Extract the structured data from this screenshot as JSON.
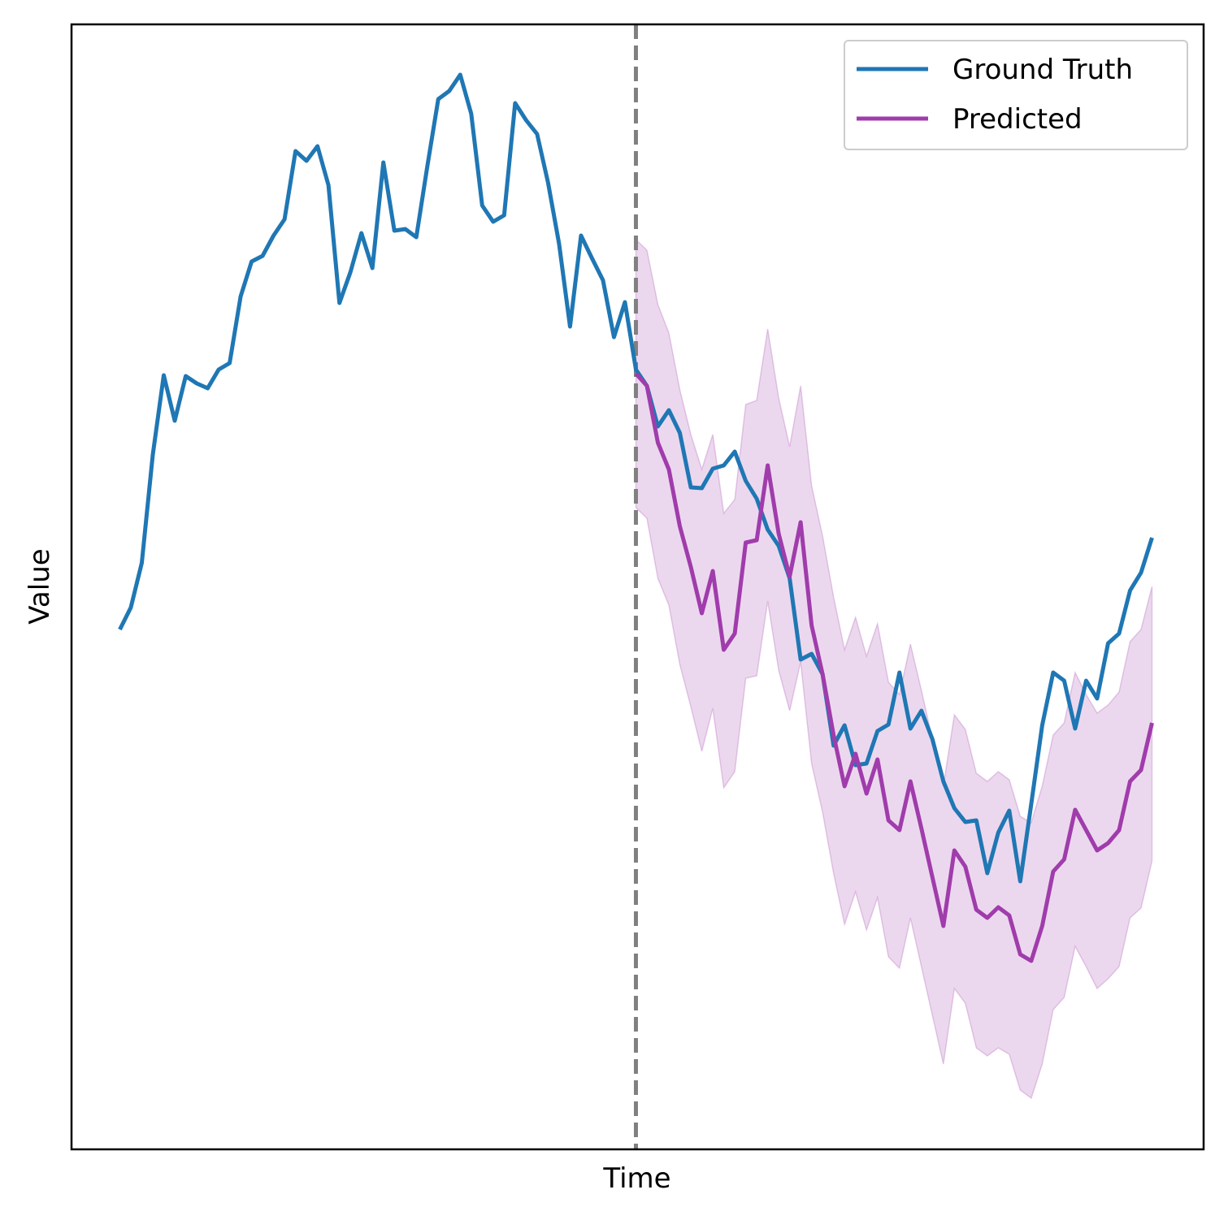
{
  "chart_data": {
    "type": "line",
    "x_label": "Time",
    "y_label": "Value",
    "x": [
      0,
      1,
      2,
      3,
      4,
      5,
      6,
      7,
      8,
      9,
      10,
      11,
      12,
      13,
      14,
      15,
      16,
      17,
      18,
      19,
      20,
      21,
      22,
      23,
      24,
      25,
      26,
      27,
      28,
      29,
      30,
      31,
      32,
      33,
      34,
      35,
      36,
      37,
      38,
      39,
      40,
      41,
      42,
      43,
      44,
      45,
      46,
      47,
      48,
      49,
      50,
      51,
      52,
      53,
      54,
      55,
      56,
      57,
      58,
      59,
      60,
      61,
      62,
      63,
      64,
      65,
      66,
      67,
      68,
      69,
      70,
      71,
      72,
      73,
      74,
      75,
      76,
      77,
      78,
      79,
      80,
      81,
      82,
      83,
      84,
      85,
      86,
      87,
      88,
      89,
      90,
      91,
      92,
      93,
      94
    ],
    "xlim": [
      -4.4,
      98.7
    ],
    "ylim": [
      0,
      1385
    ],
    "legend": "upper right",
    "series": [
      {
        "name": "Ground Truth",
        "color": "#1f77b4",
        "values": [
          640,
          667,
          722,
          855,
          953,
          897,
          952,
          943,
          937,
          960,
          968,
          1050,
          1093,
          1100,
          1125,
          1145,
          1229,
          1217,
          1235,
          1187,
          1042,
          1080,
          1128,
          1085,
          1215,
          1131,
          1133,
          1123,
          1210,
          1293,
          1303,
          1323,
          1275,
          1162,
          1142,
          1150,
          1288,
          1267,
          1250,
          1190,
          1115,
          1013,
          1125,
          1097,
          1070,
          1000,
          1043,
          960,
          940,
          890,
          910,
          882,
          815,
          814,
          838,
          842,
          859,
          823,
          801,
          763,
          743,
          703,
          603,
          610,
          585,
          497,
          522,
          473,
          475,
          515,
          523,
          587,
          518,
          540,
          505,
          453,
          420,
          403,
          405,
          340,
          390,
          417,
          330,
          425,
          522,
          587,
          577,
          518,
          577,
          555,
          623,
          635,
          688,
          710,
          753
        ]
      },
      {
        "name": "Predicted",
        "color": "#a03cac",
        "values": [
          null,
          null,
          null,
          null,
          null,
          null,
          null,
          null,
          null,
          null,
          null,
          null,
          null,
          null,
          null,
          null,
          null,
          null,
          null,
          null,
          null,
          null,
          null,
          null,
          null,
          null,
          null,
          null,
          null,
          null,
          null,
          null,
          null,
          null,
          null,
          null,
          null,
          null,
          null,
          null,
          null,
          null,
          null,
          null,
          null,
          null,
          null,
          955,
          940,
          870,
          837,
          767,
          717,
          660,
          712,
          615,
          635,
          747,
          750,
          842,
          758,
          705,
          772,
          645,
          585,
          510,
          447,
          487,
          438,
          480,
          405,
          393,
          453,
          395,
          335,
          275,
          368,
          348,
          295,
          285,
          298,
          288,
          240,
          232,
          275,
          342,
          357,
          418,
          393,
          368,
          377,
          393,
          453,
          467,
          525
        ]
      }
    ],
    "band": {
      "color": "#a03cac",
      "upper": [
        null,
        null,
        null,
        null,
        null,
        null,
        null,
        null,
        null,
        null,
        null,
        null,
        null,
        null,
        null,
        null,
        null,
        null,
        null,
        null,
        null,
        null,
        null,
        null,
        null,
        null,
        null,
        null,
        null,
        null,
        null,
        null,
        null,
        null,
        null,
        null,
        null,
        null,
        null,
        null,
        null,
        null,
        null,
        null,
        null,
        null,
        null,
        1120,
        1107,
        1040,
        1005,
        935,
        880,
        837,
        880,
        783,
        800,
        917,
        922,
        1010,
        925,
        865,
        940,
        817,
        755,
        680,
        615,
        655,
        607,
        647,
        575,
        560,
        622,
        565,
        505,
        447,
        535,
        517,
        463,
        453,
        465,
        455,
        410,
        402,
        447,
        510,
        525,
        587,
        560,
        537,
        547,
        563,
        625,
        640,
        693
      ],
      "lower": [
        null,
        null,
        null,
        null,
        null,
        null,
        null,
        null,
        null,
        null,
        null,
        null,
        null,
        null,
        null,
        null,
        null,
        null,
        null,
        null,
        null,
        null,
        null,
        null,
        null,
        null,
        null,
        null,
        null,
        null,
        null,
        null,
        null,
        null,
        null,
        null,
        null,
        null,
        null,
        null,
        null,
        null,
        null,
        null,
        null,
        null,
        null,
        790,
        777,
        703,
        670,
        597,
        545,
        490,
        543,
        445,
        465,
        580,
        583,
        675,
        590,
        540,
        600,
        475,
        415,
        340,
        277,
        317,
        270,
        310,
        237,
        223,
        285,
        225,
        165,
        105,
        198,
        180,
        125,
        115,
        125,
        117,
        73,
        63,
        105,
        172,
        187,
        250,
        225,
        198,
        210,
        225,
        285,
        297,
        355
      ]
    },
    "vline": {
      "x": 47,
      "color": "#808080"
    }
  }
}
